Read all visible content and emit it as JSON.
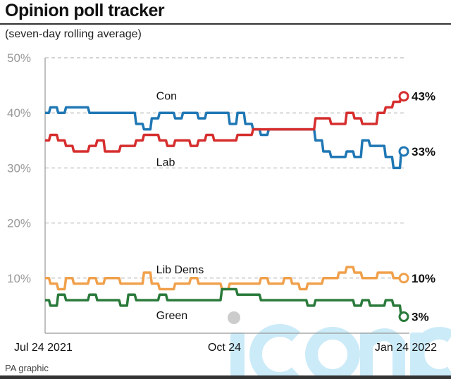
{
  "header": {
    "title": "Opinion poll tracker",
    "subtitle": "(seven-day rolling average)"
  },
  "footer": {
    "source": "PA graphic"
  },
  "watermark": "iconic",
  "chart_data": {
    "type": "line",
    "title": "Opinion poll tracker",
    "subtitle": "(seven-day rolling average)",
    "xlabel": "",
    "ylabel": "",
    "x_unit": "days since Jul 24 2021",
    "x": [
      0,
      4,
      8,
      12,
      16,
      20,
      24,
      28,
      32,
      36,
      40,
      44,
      48,
      52,
      56,
      60,
      64,
      68,
      72,
      76,
      80,
      84,
      88,
      92,
      96,
      100,
      104,
      108,
      112,
      116,
      120,
      124,
      128,
      132,
      136,
      140,
      144,
      148,
      152,
      156,
      160,
      164,
      168,
      172,
      176,
      180,
      184
    ],
    "xlim": [
      0,
      184
    ],
    "ylim": [
      0,
      50
    ],
    "yticks": [
      {
        "value": 10,
        "label": "10%"
      },
      {
        "value": 20,
        "label": "20%"
      },
      {
        "value": 30,
        "label": "30%"
      },
      {
        "value": 40,
        "label": "40%"
      },
      {
        "value": 50,
        "label": "50%"
      }
    ],
    "xticks": [
      {
        "value": 0,
        "label": "Jul 24 2021"
      },
      {
        "value": 92,
        "label": "Oct 24"
      },
      {
        "value": 184,
        "label": "Jan 24 2022"
      }
    ],
    "grid": true,
    "series": [
      {
        "name": "Con",
        "color": "#1f77b4",
        "end_label": "33%",
        "label_at": [
          57,
          43
        ],
        "values": [
          40,
          41,
          40,
          41,
          41,
          41,
          40,
          40,
          40,
          40,
          40,
          40,
          38,
          37,
          39,
          40,
          40,
          39,
          40,
          40,
          39,
          40,
          40,
          40,
          38,
          40,
          38,
          37,
          36,
          37,
          37,
          37,
          37,
          37,
          37,
          35,
          33,
          32,
          32,
          33,
          32,
          35,
          34,
          34,
          32,
          30,
          33
        ]
      },
      {
        "name": "Lab",
        "color": "#d62e2e",
        "end_label": "43%",
        "label_at": [
          57,
          31
        ],
        "values": [
          35,
          36,
          35,
          34,
          33,
          33,
          34,
          35,
          33,
          33,
          34,
          34,
          35,
          36,
          36,
          35,
          34,
          35,
          35,
          34,
          35,
          36,
          35,
          35,
          35,
          36,
          36,
          37,
          37,
          37,
          37,
          37,
          37,
          37,
          37,
          39,
          39,
          38,
          38,
          40,
          39,
          38,
          38,
          40,
          41,
          42,
          43
        ]
      },
      {
        "name": "Lib Dems",
        "color": "#f0a04b",
        "end_label": "10%",
        "label_at": [
          57,
          11.5
        ],
        "values": [
          10,
          9,
          8,
          10,
          9,
          9,
          10,
          9,
          10,
          10,
          9,
          9,
          9,
          11,
          9,
          8,
          8,
          9,
          9,
          10,
          9,
          9,
          9,
          8,
          9,
          9,
          9,
          9,
          10,
          9,
          9,
          10,
          9,
          8,
          9,
          9,
          10,
          10,
          11,
          12,
          11,
          10,
          10,
          11,
          11,
          10,
          10
        ]
      },
      {
        "name": "Green",
        "color": "#2a7a3b",
        "end_label": "3%",
        "label_at": [
          57,
          3.2
        ],
        "values": [
          6,
          5,
          7,
          6,
          6,
          6,
          7,
          6,
          6,
          6,
          5,
          7,
          6,
          6,
          6,
          7,
          6,
          6,
          6,
          6,
          6,
          6,
          6,
          8,
          8,
          7,
          7,
          7,
          6,
          6,
          6,
          6,
          6,
          6,
          5,
          6,
          6,
          6,
          6,
          6,
          5,
          6,
          5,
          5,
          6,
          5,
          3
        ]
      }
    ]
  }
}
